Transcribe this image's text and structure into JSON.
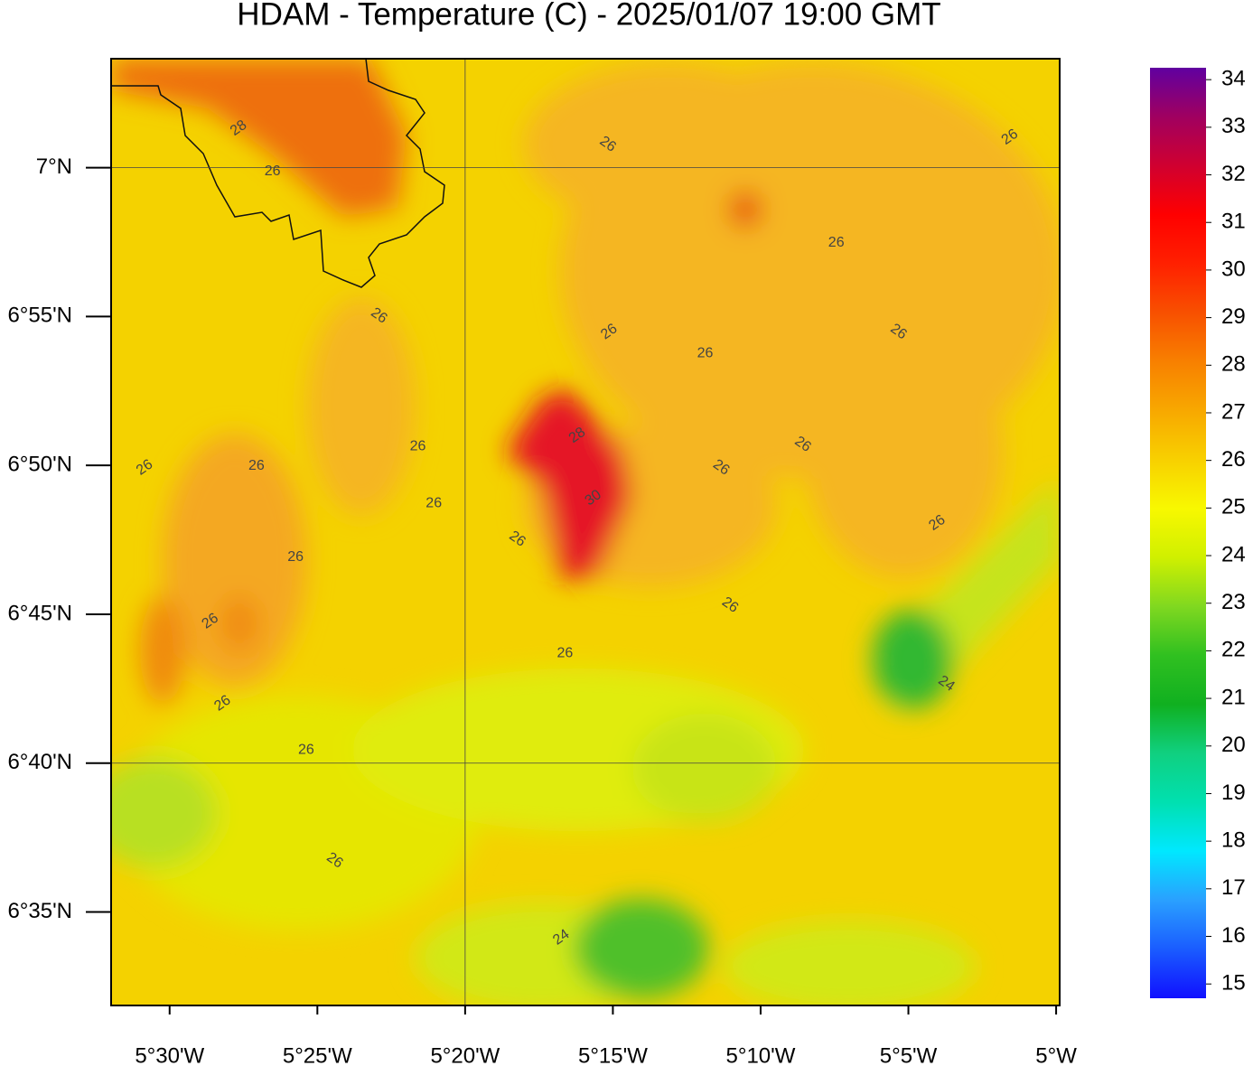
{
  "chart_data": {
    "type": "contour_map",
    "title": "HDAM - Temperature (C)  -  2025/01/07  19:00 GMT",
    "xlim": [
      -5.533,
      -4.998
    ],
    "ylim": [
      6.531,
      7.061
    ],
    "xticks": [
      {
        "value": -5.5,
        "label": "5°30'W"
      },
      {
        "value": -5.41667,
        "label": "5°25'W"
      },
      {
        "value": -5.33333,
        "label": "5°20'W"
      },
      {
        "value": -5.25,
        "label": "5°15'W"
      },
      {
        "value": -5.16667,
        "label": "5°10'W"
      },
      {
        "value": -5.08333,
        "label": "5°5'W"
      },
      {
        "value": -5,
        "label": "5°W"
      }
    ],
    "yticks": [
      {
        "value": 7,
        "label": "7°N"
      },
      {
        "value": 6.91667,
        "label": "6°55'N"
      },
      {
        "value": 6.83333,
        "label": "6°50'N"
      },
      {
        "value": 6.75,
        "label": "6°45'N"
      },
      {
        "value": 6.66667,
        "label": "6°40'N"
      },
      {
        "value": 6.58333,
        "label": "6°35'N"
      }
    ],
    "grid": true,
    "colorbar": {
      "lim": [
        14.7,
        34.25
      ],
      "ticks": [
        15,
        16,
        17,
        18,
        19,
        20,
        21,
        22,
        23,
        24,
        25,
        26,
        27,
        28,
        29,
        30,
        31,
        32,
        33,
        34
      ],
      "colors": [
        "#1010ff",
        "#1a5cff",
        "#2aa0ff",
        "#00e8ff",
        "#00e0b0",
        "#10d080",
        "#10b020",
        "#30c020",
        "#80d820",
        "#d0f000",
        "#f8f800",
        "#f8d000",
        "#f8a800",
        "#f88000",
        "#f85000",
        "#ff2000",
        "#ff0000",
        "#d00030",
        "#a00060",
        "#6000a0"
      ]
    },
    "contour_labels": [
      {
        "value": 28,
        "lon": -5.461,
        "lat": 7.022
      },
      {
        "value": 26,
        "lon": -5.442,
        "lat": 6.998
      },
      {
        "value": 26,
        "lon": -5.253,
        "lat": 7.013
      },
      {
        "value": 26,
        "lon": -5.026,
        "lat": 7.017
      },
      {
        "value": 26,
        "lon": -5.124,
        "lat": 6.958
      },
      {
        "value": 26,
        "lon": -5.382,
        "lat": 6.917
      },
      {
        "value": 26,
        "lon": -5.252,
        "lat": 6.908
      },
      {
        "value": 26,
        "lon": -5.198,
        "lat": 6.896
      },
      {
        "value": 26,
        "lon": -5.089,
        "lat": 6.908
      },
      {
        "value": 28,
        "lon": -5.27,
        "lat": 6.85
      },
      {
        "value": 26,
        "lon": -5.36,
        "lat": 6.844
      },
      {
        "value": 26,
        "lon": -5.143,
        "lat": 6.845
      },
      {
        "value": 26,
        "lon": -5.514,
        "lat": 6.832
      },
      {
        "value": 26,
        "lon": -5.451,
        "lat": 6.833
      },
      {
        "value": 26,
        "lon": -5.189,
        "lat": 6.832
      },
      {
        "value": 30,
        "lon": -5.261,
        "lat": 6.815
      },
      {
        "value": 26,
        "lon": -5.351,
        "lat": 6.812
      },
      {
        "value": 26,
        "lon": -5.304,
        "lat": 6.792
      },
      {
        "value": 26,
        "lon": -5.067,
        "lat": 6.801
      },
      {
        "value": 26,
        "lon": -5.429,
        "lat": 6.782
      },
      {
        "value": 26,
        "lon": -5.184,
        "lat": 6.755
      },
      {
        "value": 26,
        "lon": -5.477,
        "lat": 6.746
      },
      {
        "value": 26,
        "lon": -5.277,
        "lat": 6.728
      },
      {
        "value": 24,
        "lon": -5.062,
        "lat": 6.711
      },
      {
        "value": 26,
        "lon": -5.47,
        "lat": 6.7
      },
      {
        "value": 26,
        "lon": -5.423,
        "lat": 6.674
      },
      {
        "value": 26,
        "lon": -5.407,
        "lat": 6.612
      },
      {
        "value": 24,
        "lon": -5.279,
        "lat": 6.569
      }
    ]
  }
}
